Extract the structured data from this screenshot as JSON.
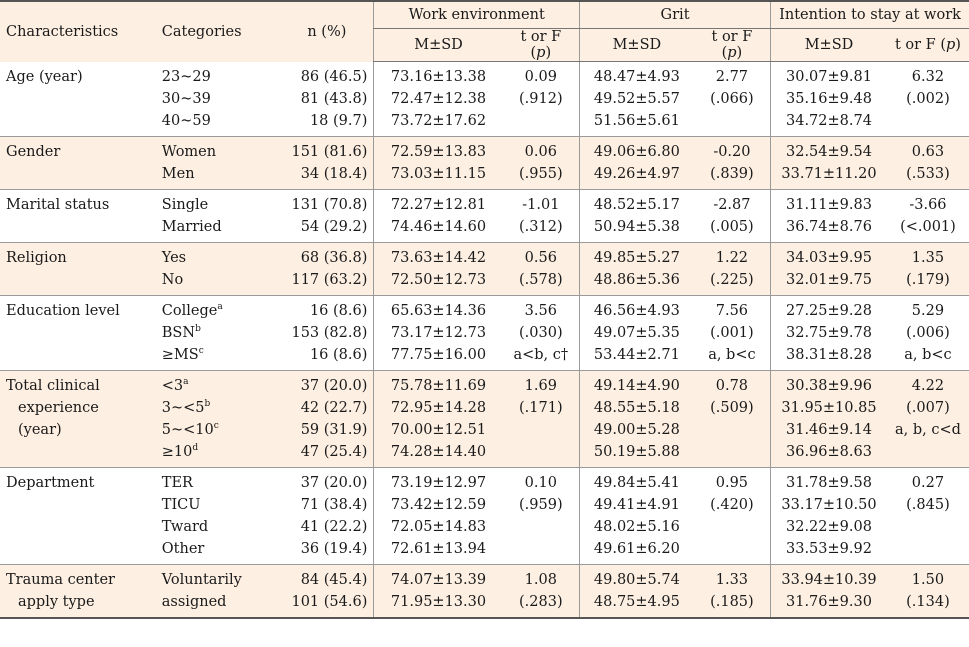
{
  "header": {
    "characteristics": "Characteristics",
    "categories": "Categories",
    "n_pct": "n (%)",
    "work_environment": "Work environment",
    "grit": "Grit",
    "intention": "Intention to stay at work",
    "msd": "M±SD",
    "t_or_f_prefix": "t or F (",
    "t_or_f_p": "p",
    "t_or_f_suffix": ")"
  },
  "rows": [
    {
      "char": [
        "Age (year)"
      ],
      "cats": [
        [
          "23~29",
          ""
        ],
        [
          "30~39",
          ""
        ],
        [
          "40~59",
          ""
        ]
      ],
      "n": [
        "86 (46.5)",
        "81 (43.8)",
        "18 (9.7)"
      ],
      "we_m": [
        "73.16±13.38",
        "72.47±12.38",
        "73.72±17.62"
      ],
      "we_t": [
        "0.09",
        "(.912)"
      ],
      "gr_m": [
        "48.47±4.93",
        "49.52±5.57",
        "51.56±5.61"
      ],
      "gr_t": [
        "2.77",
        "(.066)"
      ],
      "it_m": [
        "30.07±9.81",
        "35.16±9.48",
        "34.72±8.74"
      ],
      "it_t": [
        "6.32",
        "(.002)"
      ]
    },
    {
      "char": [
        "Gender"
      ],
      "cats": [
        [
          "Women",
          ""
        ],
        [
          "Men",
          ""
        ]
      ],
      "n": [
        "151 (81.6)",
        "34 (18.4)"
      ],
      "we_m": [
        "72.59±13.83",
        "73.03±11.15"
      ],
      "we_t": [
        "0.06",
        "(.955)"
      ],
      "gr_m": [
        "49.06±6.80",
        "49.26±4.97"
      ],
      "gr_t": [
        "-0.20",
        "(.839)"
      ],
      "it_m": [
        "32.54±9.54",
        "33.71±11.20"
      ],
      "it_t": [
        "0.63",
        "(.533)"
      ]
    },
    {
      "char": [
        "Marital status"
      ],
      "cats": [
        [
          "Single",
          ""
        ],
        [
          "Married",
          ""
        ]
      ],
      "n": [
        "131 (70.8)",
        "54 (29.2)"
      ],
      "we_m": [
        "72.27±12.81",
        "74.46±14.60"
      ],
      "we_t": [
        "-1.01",
        "(.312)"
      ],
      "gr_m": [
        "48.52±5.17",
        "50.94±5.38"
      ],
      "gr_t": [
        "-2.87",
        "(.005)"
      ],
      "it_m": [
        "31.11±9.83",
        "36.74±8.76"
      ],
      "it_t": [
        "-3.66",
        "(<.001)"
      ]
    },
    {
      "char": [
        "Religion"
      ],
      "cats": [
        [
          "Yes",
          ""
        ],
        [
          "No",
          ""
        ]
      ],
      "n": [
        "68 (36.8)",
        "117 (63.2)"
      ],
      "we_m": [
        "73.63±14.42",
        "72.50±12.73"
      ],
      "we_t": [
        "0.56",
        "(.578)"
      ],
      "gr_m": [
        "49.85±5.27",
        "48.86±5.36"
      ],
      "gr_t": [
        "1.22",
        "(.225)"
      ],
      "it_m": [
        "34.03±9.95",
        "32.01±9.75"
      ],
      "it_t": [
        "1.35",
        "(.179)"
      ]
    },
    {
      "char": [
        "Education level"
      ],
      "cats": [
        [
          "College",
          "a"
        ],
        [
          "BSN",
          "b"
        ],
        [
          "≥MS",
          "c"
        ]
      ],
      "n": [
        "16 (8.6)",
        "153 (82.8)",
        "16 (8.6)"
      ],
      "we_m": [
        "65.63±14.36",
        "73.17±12.73",
        "77.75±16.00"
      ],
      "we_t": [
        "3.56",
        "(.030)",
        "a<b, c†"
      ],
      "gr_m": [
        "46.56±4.93",
        "49.07±5.35",
        "53.44±2.71"
      ],
      "gr_t": [
        "7.56",
        "(.001)",
        "a, b<c"
      ],
      "it_m": [
        "27.25±9.28",
        "32.75±9.78",
        "38.31±8.28"
      ],
      "it_t": [
        "5.29",
        "(.006)",
        "a, b<c"
      ]
    },
    {
      "char": [
        "Total clinical",
        "experience",
        "(year)"
      ],
      "cats": [
        [
          "<3",
          "a"
        ],
        [
          "3~<5",
          "b"
        ],
        [
          "5~<10",
          "c"
        ],
        [
          "≥10",
          "d"
        ]
      ],
      "n": [
        "37 (20.0)",
        "42 (22.7)",
        "59 (31.9)",
        "47 (25.4)"
      ],
      "we_m": [
        "75.78±11.69",
        "72.95±14.28",
        "70.00±12.51",
        "74.28±14.40"
      ],
      "we_t": [
        "1.69",
        "(.171)"
      ],
      "gr_m": [
        "49.14±4.90",
        "48.55±5.18",
        "49.00±5.28",
        "50.19±5.88"
      ],
      "gr_t": [
        "0.78",
        "(.509)"
      ],
      "it_m": [
        "30.38±9.96",
        "31.95±10.85",
        "31.46±9.14",
        "36.96±8.63"
      ],
      "it_t": [
        "4.22",
        "(.007)",
        "a, b, c<d"
      ]
    },
    {
      "char": [
        "Department"
      ],
      "cats": [
        [
          "TER",
          ""
        ],
        [
          "TICU",
          ""
        ],
        [
          "Tward",
          ""
        ],
        [
          "Other",
          ""
        ]
      ],
      "n": [
        "37 (20.0)",
        "71 (38.4)",
        "41 (22.2)",
        "36 (19.4)"
      ],
      "we_m": [
        "73.19±12.97",
        "73.42±12.59",
        "72.05±14.83",
        "72.61±13.94"
      ],
      "we_t": [
        "0.10",
        "(.959)"
      ],
      "gr_m": [
        "49.84±5.41",
        "49.41±4.91",
        "48.02±5.16",
        "49.61±6.20"
      ],
      "gr_t": [
        "0.95",
        "(.420)"
      ],
      "it_m": [
        "31.78±9.58",
        "33.17±10.50",
        "32.22±9.08",
        "33.53±9.92"
      ],
      "it_t": [
        "0.27",
        "(.845)"
      ]
    },
    {
      "char": [
        "Trauma center",
        "apply type"
      ],
      "cats": [
        [
          "Voluntarily",
          ""
        ],
        [
          "assigned",
          ""
        ]
      ],
      "n": [
        "84 (45.4)",
        "101 (54.6)"
      ],
      "we_m": [
        "74.07±13.39",
        "71.95±13.30"
      ],
      "we_t": [
        "1.08",
        "(.283)"
      ],
      "gr_m": [
        "49.80±5.74",
        "48.75±4.95"
      ],
      "gr_t": [
        "1.33",
        "(.185)"
      ],
      "it_m": [
        "33.94±10.39",
        "31.76±9.30"
      ],
      "it_t": [
        "1.50",
        "(.134)"
      ]
    }
  ]
}
